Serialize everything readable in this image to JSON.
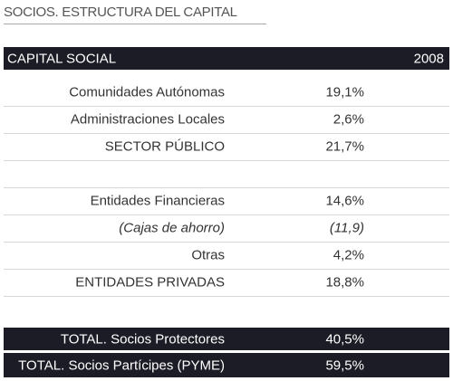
{
  "header": {
    "title": "SOCIOS. ESTRUCTURA DEL CAPITAL"
  },
  "table": {
    "header": [
      "CAPITAL SOCIAL",
      "2008"
    ],
    "rows": [
      [
        "Comunidades Autónomas",
        "19,1%"
      ],
      [
        "Administraciones Locales",
        "2,6%"
      ],
      [
        "SECTOR PÚBLICO",
        "21,7%"
      ],
      null,
      [
        "Entidades Financieras",
        "14,6%"
      ],
      [
        "(Cajas de ahorro)",
        "(11,9)"
      ],
      [
        "Otras",
        "4,2%"
      ],
      [
        "ENTIDADES PRIVADAS",
        "18,8%"
      ]
    ],
    "totals": [
      [
        "TOTAL. Socios Protectores",
        "40,5%"
      ],
      [
        "TOTAL. Socios Partícipes (PYME)",
        "59,5%"
      ]
    ]
  }
}
